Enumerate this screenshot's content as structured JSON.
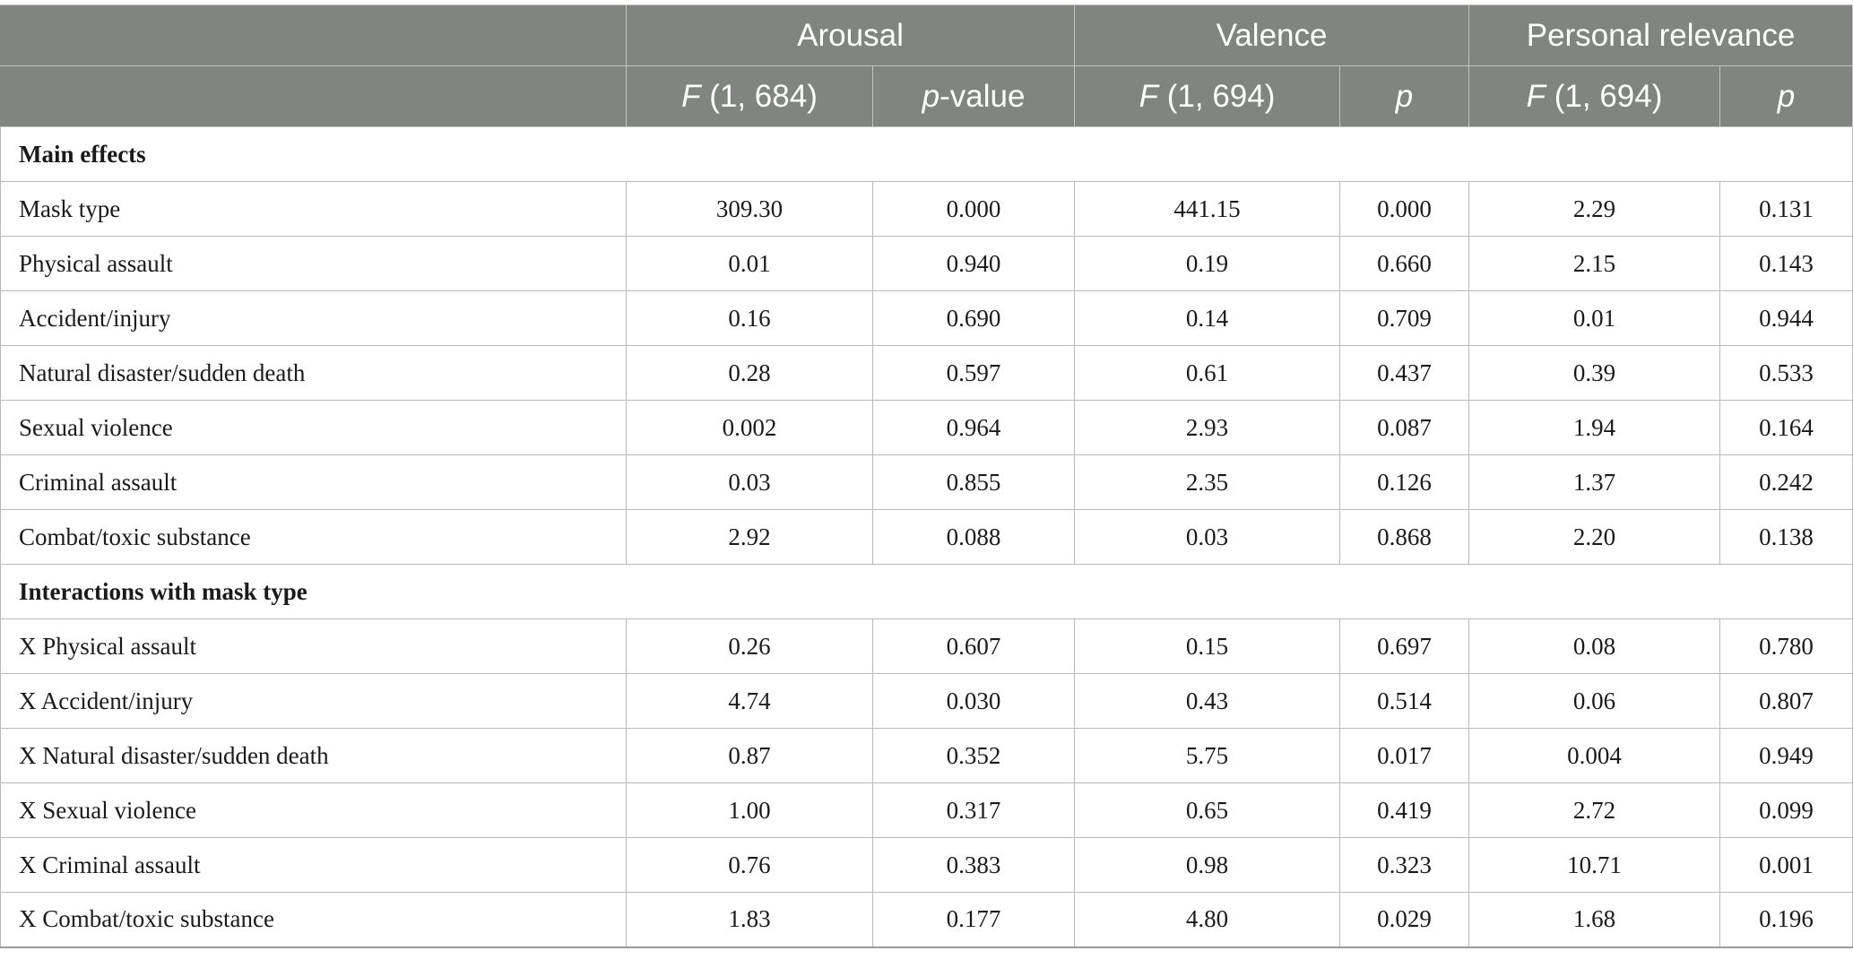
{
  "header": {
    "groups": [
      "Arousal",
      "Valence",
      "Personal relevance"
    ],
    "subcolumns": [
      {
        "italic": "F",
        "rest": " (1, 684)"
      },
      {
        "italic": "p",
        "rest": "-value"
      },
      {
        "italic": "F",
        "rest": " (1, 694)"
      },
      {
        "italic": "p",
        "rest": ""
      },
      {
        "italic": "F",
        "rest": " (1, 694)"
      },
      {
        "italic": "p",
        "rest": ""
      }
    ]
  },
  "sections": [
    {
      "title": "Main effects",
      "rows": [
        {
          "label": "Mask type",
          "values": [
            "309.30",
            "0.000",
            "441.15",
            "0.000",
            "2.29",
            "0.131"
          ]
        },
        {
          "label": "Physical assault",
          "values": [
            "0.01",
            "0.940",
            "0.19",
            "0.660",
            "2.15",
            "0.143"
          ]
        },
        {
          "label": "Accident/injury",
          "values": [
            "0.16",
            "0.690",
            "0.14",
            "0.709",
            "0.01",
            "0.944"
          ]
        },
        {
          "label": "Natural disaster/sudden death",
          "values": [
            "0.28",
            "0.597",
            "0.61",
            "0.437",
            "0.39",
            "0.533"
          ]
        },
        {
          "label": "Sexual violence",
          "values": [
            "0.002",
            "0.964",
            "2.93",
            "0.087",
            "1.94",
            "0.164"
          ]
        },
        {
          "label": "Criminal assault",
          "values": [
            "0.03",
            "0.855",
            "2.35",
            "0.126",
            "1.37",
            "0.242"
          ]
        },
        {
          "label": "Combat/toxic substance",
          "values": [
            "2.92",
            "0.088",
            "0.03",
            "0.868",
            "2.20",
            "0.138"
          ]
        }
      ]
    },
    {
      "title": "Interactions with mask type",
      "rows": [
        {
          "label": "X Physical assault",
          "values": [
            "0.26",
            "0.607",
            "0.15",
            "0.697",
            "0.08",
            "0.780"
          ]
        },
        {
          "label": "X Accident/injury",
          "values": [
            "4.74",
            "0.030",
            "0.43",
            "0.514",
            "0.06",
            "0.807"
          ]
        },
        {
          "label": "X Natural disaster/sudden death",
          "values": [
            "0.87",
            "0.352",
            "5.75",
            "0.017",
            "0.004",
            "0.949"
          ]
        },
        {
          "label": "X Sexual violence",
          "values": [
            "1.00",
            "0.317",
            "0.65",
            "0.419",
            "2.72",
            "0.099"
          ]
        },
        {
          "label": "X Criminal assault",
          "values": [
            "0.76",
            "0.383",
            "0.98",
            "0.323",
            "10.71",
            "0.001"
          ]
        },
        {
          "label": "X Combat/toxic substance",
          "values": [
            "1.83",
            "0.177",
            "4.80",
            "0.029",
            "1.68",
            "0.196"
          ]
        }
      ]
    }
  ]
}
